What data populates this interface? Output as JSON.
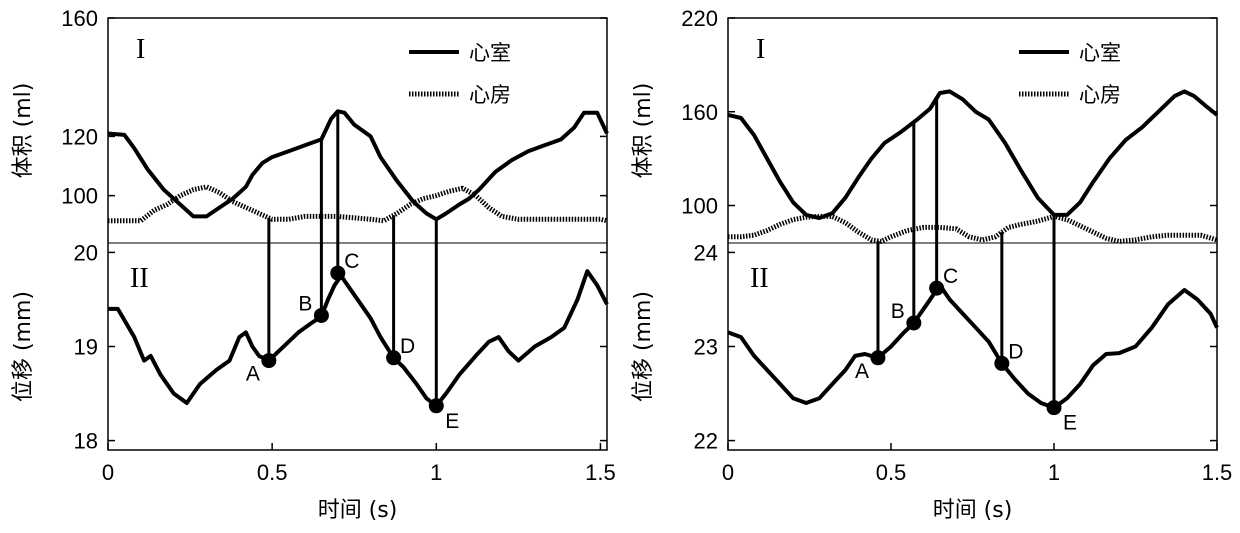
{
  "chart_data": [
    {
      "type": "line",
      "xlabel": "时间 (s)",
      "x_ticks": [
        "0",
        "0.5",
        "1",
        "1.5"
      ],
      "xlim": [
        0,
        1.52
      ],
      "top": {
        "label": "I",
        "ylabel": "体积 (ml)",
        "ylim": [
          84,
          160
        ],
        "y_ticks": [
          100,
          120,
          160
        ],
        "y_tick_labels": [
          "100",
          "120",
          "160"
        ],
        "legend": {
          "placement": "top-right",
          "entries": [
            "心室",
            "心房"
          ]
        },
        "series": [
          {
            "name": "心室",
            "style": "solid",
            "x": [
              0,
              0.05,
              0.08,
              0.12,
              0.17,
              0.22,
              0.26,
              0.3,
              0.34,
              0.38,
              0.42,
              0.44,
              0.47,
              0.5,
              0.55,
              0.6,
              0.65,
              0.68,
              0.7,
              0.72,
              0.75,
              0.8,
              0.83,
              0.88,
              0.93,
              0.97,
              1.0,
              1.03,
              1.07,
              1.1,
              1.13,
              1.18,
              1.23,
              1.28,
              1.33,
              1.38,
              1.42,
              1.45,
              1.49,
              1.52
            ],
            "y": [
              121,
              120.5,
              116,
              109,
              102,
              97,
              93,
              93,
              96,
              99,
              103,
              107,
              111,
              113,
              115,
              117,
              119,
              126,
              128.5,
              128,
              124,
              120,
              113,
              105,
              98,
              94,
              92,
              94,
              97,
              99,
              102,
              108,
              112,
              115,
              117,
              119,
              123,
              128,
              128,
              121
            ]
          },
          {
            "name": "心房",
            "style": "dotted",
            "x": [
              0,
              0.05,
              0.1,
              0.14,
              0.18,
              0.22,
              0.26,
              0.3,
              0.34,
              0.38,
              0.42,
              0.46,
              0.5,
              0.55,
              0.6,
              0.65,
              0.7,
              0.75,
              0.8,
              0.84,
              0.88,
              0.92,
              0.96,
              1.0,
              1.04,
              1.08,
              1.12,
              1.16,
              1.2,
              1.25,
              1.3,
              1.35,
              1.4,
              1.45,
              1.5,
              1.52
            ],
            "y": [
              91.5,
              91.5,
              91.5,
              95,
              97,
              100,
              102,
              103,
              101,
              98,
              96,
              94,
              92,
              92,
              93,
              93,
              93,
              92.5,
              92,
              91.5,
              94,
              97,
              99,
              100,
              101.5,
              102.5,
              100,
              96,
              93,
              92,
              92,
              92,
              92,
              92,
              92,
              91.5
            ]
          }
        ]
      },
      "bottom": {
        "label": "II",
        "ylabel": "位移 (mm)",
        "ylim": [
          17.9,
          20.1
        ],
        "y_ticks": [
          18,
          19,
          20
        ],
        "y_tick_labels": [
          "18",
          "19",
          "20"
        ],
        "series": [
          {
            "name": "",
            "style": "solid",
            "x": [
              0,
              0.03,
              0.08,
              0.11,
              0.13,
              0.16,
              0.2,
              0.24,
              0.28,
              0.33,
              0.37,
              0.4,
              0.42,
              0.44,
              0.46,
              0.49,
              0.52,
              0.55,
              0.58,
              0.62,
              0.65,
              0.67,
              0.69,
              0.71,
              0.74,
              0.77,
              0.8,
              0.83,
              0.87,
              0.9,
              0.94,
              0.97,
              1.0,
              1.03,
              1.07,
              1.12,
              1.16,
              1.19,
              1.22,
              1.25,
              1.3,
              1.35,
              1.39,
              1.43,
              1.46,
              1.49,
              1.52
            ],
            "y": [
              19.4,
              19.4,
              19.1,
              18.85,
              18.9,
              18.7,
              18.5,
              18.4,
              18.6,
              18.75,
              18.85,
              19.1,
              19.15,
              19.0,
              18.9,
              18.85,
              18.95,
              19.05,
              19.15,
              19.25,
              19.32,
              19.5,
              19.65,
              19.75,
              19.6,
              19.45,
              19.3,
              19.1,
              18.88,
              18.78,
              18.6,
              18.45,
              18.37,
              18.5,
              18.7,
              18.9,
              19.05,
              19.1,
              18.95,
              18.85,
              19.0,
              19.1,
              19.2,
              19.5,
              19.8,
              19.65,
              19.45
            ]
          }
        ],
        "points": [
          {
            "label": "A",
            "x": 0.49,
            "y": 18.85,
            "label_side": "lower-left"
          },
          {
            "label": "B",
            "x": 0.65,
            "y": 19.33,
            "label_side": "upper-left"
          },
          {
            "label": "C",
            "x": 0.7,
            "y": 19.78,
            "label_side": "upper-right"
          },
          {
            "label": "D",
            "x": 0.87,
            "y": 18.88,
            "label_side": "upper-right"
          },
          {
            "label": "E",
            "x": 1.0,
            "y": 18.37,
            "label_side": "lower-right"
          }
        ]
      }
    },
    {
      "type": "line",
      "xlabel": "时间 (s)",
      "x_ticks": [
        "0",
        "0.5",
        "1",
        "1.5"
      ],
      "xlim": [
        0,
        1.5
      ],
      "top": {
        "label": "I",
        "ylabel": "体积 (ml)",
        "ylim": [
          76,
          220
        ],
        "y_ticks": [
          100,
          160,
          220
        ],
        "y_tick_labels": [
          "100",
          "160",
          "220"
        ],
        "legend": {
          "placement": "top-right",
          "entries": [
            "心室",
            "心房"
          ]
        },
        "series": [
          {
            "name": "心室",
            "style": "solid",
            "x": [
              0,
              0.04,
              0.08,
              0.12,
              0.16,
              0.2,
              0.24,
              0.28,
              0.32,
              0.36,
              0.4,
              0.44,
              0.48,
              0.53,
              0.58,
              0.62,
              0.65,
              0.68,
              0.72,
              0.76,
              0.8,
              0.85,
              0.9,
              0.95,
              1.0,
              1.04,
              1.08,
              1.12,
              1.17,
              1.22,
              1.27,
              1.32,
              1.37,
              1.4,
              1.43,
              1.47,
              1.5
            ],
            "y": [
              158,
              156,
              145,
              130,
              115,
              102,
              94,
              92,
              95,
              105,
              118,
              130,
              140,
              147,
              155,
              162,
              172,
              173,
              168,
              160,
              155,
              140,
              122,
              105,
              94,
              94,
              102,
              115,
              130,
              142,
              150,
              160,
              170,
              173,
              170,
              163,
              158
            ]
          },
          {
            "name": "心房",
            "style": "dotted",
            "x": [
              0,
              0.04,
              0.08,
              0.12,
              0.16,
              0.2,
              0.24,
              0.28,
              0.32,
              0.36,
              0.4,
              0.44,
              0.47,
              0.5,
              0.55,
              0.6,
              0.65,
              0.7,
              0.74,
              0.78,
              0.82,
              0.86,
              0.9,
              0.95,
              1.0,
              1.04,
              1.08,
              1.12,
              1.16,
              1.2,
              1.25,
              1.3,
              1.35,
              1.4,
              1.45,
              1.5
            ],
            "y": [
              80,
              80,
              81,
              84,
              88,
              91,
              92.5,
              93,
              93,
              89,
              83,
              78,
              77,
              80,
              84,
              86,
              86,
              85,
              80,
              78,
              80,
              86,
              88,
              90,
              93,
              91,
              87,
              83,
              79,
              77,
              78,
              80,
              81,
              81,
              81,
              78
            ]
          }
        ]
      },
      "bottom": {
        "label": "II",
        "ylabel": "位移 (mm)",
        "ylim": [
          21.9,
          24.1
        ],
        "y_ticks": [
          22,
          23,
          24
        ],
        "y_tick_labels": [
          "22",
          "23",
          "24"
        ],
        "series": [
          {
            "name": "",
            "style": "solid",
            "x": [
              0,
              0.04,
              0.08,
              0.12,
              0.16,
              0.2,
              0.24,
              0.28,
              0.32,
              0.36,
              0.39,
              0.42,
              0.44,
              0.46,
              0.5,
              0.54,
              0.57,
              0.61,
              0.65,
              0.68,
              0.72,
              0.76,
              0.8,
              0.84,
              0.88,
              0.92,
              0.96,
              1.0,
              1.04,
              1.08,
              1.12,
              1.16,
              1.2,
              1.25,
              1.3,
              1.35,
              1.4,
              1.44,
              1.48,
              1.5
            ],
            "y": [
              23.15,
              23.1,
              22.9,
              22.75,
              22.6,
              22.45,
              22.4,
              22.45,
              22.6,
              22.75,
              22.9,
              22.92,
              22.9,
              22.88,
              23.0,
              23.15,
              23.25,
              23.45,
              23.65,
              23.5,
              23.35,
              23.2,
              23.05,
              22.82,
              22.65,
              22.5,
              22.4,
              22.35,
              22.45,
              22.6,
              22.8,
              22.92,
              22.93,
              23.0,
              23.2,
              23.45,
              23.6,
              23.5,
              23.35,
              23.2
            ]
          }
        ],
        "points": [
          {
            "label": "A",
            "x": 0.46,
            "y": 22.88,
            "label_side": "lower-left"
          },
          {
            "label": "B",
            "x": 0.57,
            "y": 23.25,
            "label_side": "upper-left"
          },
          {
            "label": "C",
            "x": 0.64,
            "y": 23.62,
            "label_side": "upper-right"
          },
          {
            "label": "D",
            "x": 0.84,
            "y": 22.82,
            "label_side": "upper-right"
          },
          {
            "label": "E",
            "x": 1.0,
            "y": 22.35,
            "label_side": "lower-right"
          }
        ]
      }
    }
  ]
}
